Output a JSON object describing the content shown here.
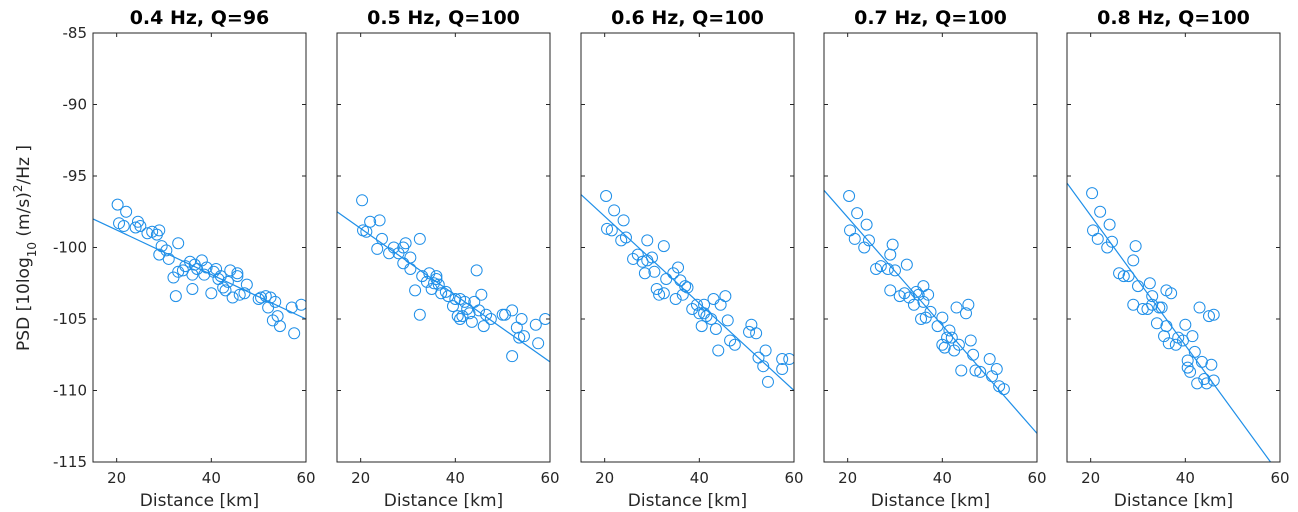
{
  "colors": {
    "series": "#1f8fe8",
    "axes": "#262626"
  },
  "ylabel": {
    "prefix": "PSD [10log",
    "sub": "10",
    "mid": " (m/s)",
    "sup": "2",
    "suffix": "/Hz ]"
  },
  "chart_data": [
    {
      "type": "scatter",
      "title": "0.4 Hz, Q=96",
      "xlabel": "Distance [km]",
      "xlim": [
        15,
        60
      ],
      "ylim": [
        -115,
        -85
      ],
      "xticks": [
        20,
        40,
        60
      ],
      "yticks": [
        -85,
        -90,
        -95,
        -100,
        -105,
        -110,
        -115
      ],
      "grid": false,
      "fit": [
        [
          15,
          -98
        ],
        [
          60,
          -105
        ]
      ],
      "points": [
        [
          20.2,
          -97.0
        ],
        [
          20.5,
          -98.3
        ],
        [
          21.5,
          -98.5
        ],
        [
          22,
          -97.5
        ],
        [
          24,
          -98.6
        ],
        [
          24.5,
          -98.2
        ],
        [
          25,
          -98.5
        ],
        [
          26.5,
          -99.0
        ],
        [
          27.5,
          -98.9
        ],
        [
          28.5,
          -99.1
        ],
        [
          29,
          -98.8
        ],
        [
          29,
          -100.5
        ],
        [
          29.5,
          -99.9
        ],
        [
          30.5,
          -100.2
        ],
        [
          31,
          -100.8
        ],
        [
          32,
          -102.1
        ],
        [
          32.5,
          -103.4
        ],
        [
          33,
          -99.7
        ],
        [
          33,
          -101.7
        ],
        [
          34,
          -101.6
        ],
        [
          34.5,
          -101.3
        ],
        [
          35.5,
          -101.0
        ],
        [
          36,
          -101.9
        ],
        [
          36,
          -102.9
        ],
        [
          36.5,
          -101.2
        ],
        [
          37,
          -101.5
        ],
        [
          38,
          -100.9
        ],
        [
          38.5,
          -101.9
        ],
        [
          39,
          -101.4
        ],
        [
          40,
          -103.2
        ],
        [
          40.5,
          -101.7
        ],
        [
          41,
          -101.5
        ],
        [
          41.5,
          -102.2
        ],
        [
          42,
          -102.0
        ],
        [
          42.5,
          -102.8
        ],
        [
          43,
          -103.0
        ],
        [
          43.5,
          -102.4
        ],
        [
          44,
          -101.6
        ],
        [
          44.5,
          -103.5
        ],
        [
          45.5,
          -102.0
        ],
        [
          45.5,
          -101.8
        ],
        [
          46,
          -103.3
        ],
        [
          47,
          -103.2
        ],
        [
          47.5,
          -102.6
        ],
        [
          50,
          -103.6
        ],
        [
          50.5,
          -103.5
        ],
        [
          51.5,
          -103.4
        ],
        [
          52,
          -104.2
        ],
        [
          52.5,
          -103.5
        ],
        [
          53,
          -105.1
        ],
        [
          53.5,
          -103.8
        ],
        [
          54,
          -104.8
        ],
        [
          54.5,
          -105.5
        ],
        [
          57,
          -104.2
        ],
        [
          57.5,
          -106.0
        ],
        [
          59,
          -104.0
        ]
      ]
    },
    {
      "type": "scatter",
      "title": "0.5 Hz, Q=100",
      "xlabel": "Distance [km]",
      "xlim": [
        15,
        60
      ],
      "ylim": [
        -115,
        -85
      ],
      "xticks": [
        20,
        40,
        60
      ],
      "yticks": [
        -85,
        -90,
        -95,
        -100,
        -105,
        -110,
        -115
      ],
      "grid": false,
      "fit": [
        [
          15,
          -97.5
        ],
        [
          60,
          -108
        ]
      ],
      "points": [
        [
          20.3,
          -96.7
        ],
        [
          20.5,
          -98.8
        ],
        [
          21.2,
          -98.9
        ],
        [
          22,
          -98.2
        ],
        [
          23.5,
          -100.1
        ],
        [
          24,
          -98.1
        ],
        [
          24.5,
          -99.4
        ],
        [
          26,
          -100.4
        ],
        [
          27,
          -100.0
        ],
        [
          28,
          -100.4
        ],
        [
          29,
          -101.1
        ],
        [
          29,
          -100.0
        ],
        [
          29.5,
          -99.7
        ],
        [
          30.5,
          -100.7
        ],
        [
          30.5,
          -101.5
        ],
        [
          31.5,
          -103.0
        ],
        [
          32.5,
          -104.7
        ],
        [
          32.5,
          -99.4
        ],
        [
          33,
          -102.0
        ],
        [
          34,
          -102.4
        ],
        [
          34.5,
          -101.8
        ],
        [
          35,
          -102.9
        ],
        [
          35.5,
          -102.5
        ],
        [
          36,
          -102.0
        ],
        [
          36,
          -102.2
        ],
        [
          36.5,
          -102.6
        ],
        [
          37,
          -103.2
        ],
        [
          38,
          -103.1
        ],
        [
          38.5,
          -103.4
        ],
        [
          39.5,
          -104.1
        ],
        [
          40,
          -103.6
        ],
        [
          40.5,
          -104.8
        ],
        [
          41,
          -105.0
        ],
        [
          41,
          -103.6
        ],
        [
          41.5,
          -104.8
        ],
        [
          42,
          -103.8
        ],
        [
          42.5,
          -104.3
        ],
        [
          43,
          -104.6
        ],
        [
          43.5,
          -105.2
        ],
        [
          44,
          -103.8
        ],
        [
          44.5,
          -101.6
        ],
        [
          45,
          -104.4
        ],
        [
          45.5,
          -103.3
        ],
        [
          46,
          -105.5
        ],
        [
          46.5,
          -104.7
        ],
        [
          47.5,
          -105.0
        ],
        [
          50,
          -104.7
        ],
        [
          50.5,
          -104.7
        ],
        [
          52,
          -107.6
        ],
        [
          52,
          -104.4
        ],
        [
          53,
          -105.6
        ],
        [
          53.5,
          -106.3
        ],
        [
          54,
          -105.0
        ],
        [
          54.5,
          -106.2
        ],
        [
          57,
          -105.4
        ],
        [
          57.5,
          -106.7
        ],
        [
          59,
          -105.0
        ]
      ]
    },
    {
      "type": "scatter",
      "title": "0.6 Hz, Q=100",
      "xlabel": "Distance [km]",
      "xlim": [
        15,
        60
      ],
      "ylim": [
        -115,
        -85
      ],
      "xticks": [
        20,
        40,
        60
      ],
      "yticks": [
        -85,
        -90,
        -95,
        -100,
        -105,
        -110,
        -115
      ],
      "grid": false,
      "fit": [
        [
          15,
          -96.3
        ],
        [
          60,
          -110
        ]
      ],
      "points": [
        [
          20.3,
          -96.4
        ],
        [
          20.5,
          -98.7
        ],
        [
          21.5,
          -98.8
        ],
        [
          22,
          -97.4
        ],
        [
          23.5,
          -99.5
        ],
        [
          24,
          -98.1
        ],
        [
          24.5,
          -99.3
        ],
        [
          26,
          -100.8
        ],
        [
          27,
          -100.5
        ],
        [
          28,
          -101.0
        ],
        [
          28.5,
          -101.8
        ],
        [
          29,
          -100.9
        ],
        [
          29,
          -99.5
        ],
        [
          30,
          -100.7
        ],
        [
          30.5,
          -101.7
        ],
        [
          31,
          -102.9
        ],
        [
          31.5,
          -103.3
        ],
        [
          32.5,
          -99.9
        ],
        [
          32.5,
          -103.2
        ],
        [
          33,
          -102.2
        ],
        [
          34.5,
          -101.8
        ],
        [
          35,
          -103.6
        ],
        [
          35.5,
          -101.4
        ],
        [
          36,
          -102.3
        ],
        [
          36.5,
          -103.3
        ],
        [
          37,
          -102.7
        ],
        [
          37.5,
          -102.8
        ],
        [
          38.5,
          -104.3
        ],
        [
          39.5,
          -104.0
        ],
        [
          40,
          -104.6
        ],
        [
          40.5,
          -105.5
        ],
        [
          41,
          -104.0
        ],
        [
          41,
          -104.6
        ],
        [
          41.5,
          -104.8
        ],
        [
          42.5,
          -105.0
        ],
        [
          43,
          -103.6
        ],
        [
          43.5,
          -105.7
        ],
        [
          44,
          -107.2
        ],
        [
          44.5,
          -104.0
        ],
        [
          45.5,
          -103.4
        ],
        [
          46,
          -105.1
        ],
        [
          46.5,
          -106.5
        ],
        [
          47.5,
          -106.8
        ],
        [
          50.5,
          -105.9
        ],
        [
          51,
          -105.4
        ],
        [
          52,
          -106.0
        ],
        [
          52.5,
          -107.7
        ],
        [
          53.5,
          -108.3
        ],
        [
          54,
          -107.2
        ],
        [
          54.5,
          -109.4
        ],
        [
          57.5,
          -107.8
        ],
        [
          57.5,
          -108.5
        ],
        [
          59,
          -107.8
        ]
      ]
    },
    {
      "type": "scatter",
      "title": "0.7 Hz, Q=100",
      "xlabel": "Distance [km]",
      "xlim": [
        15,
        60
      ],
      "ylim": [
        -115,
        -85
      ],
      "xticks": [
        20,
        40,
        60
      ],
      "yticks": [
        -85,
        -90,
        -95,
        -100,
        -105,
        -110,
        -115
      ],
      "grid": false,
      "fit": [
        [
          15,
          -96
        ],
        [
          60,
          -113
        ]
      ],
      "points": [
        [
          20.3,
          -96.4
        ],
        [
          20.5,
          -98.8
        ],
        [
          21.5,
          -99.4
        ],
        [
          22,
          -97.6
        ],
        [
          23.5,
          -100.0
        ],
        [
          24,
          -98.4
        ],
        [
          24.5,
          -99.5
        ],
        [
          26,
          -101.5
        ],
        [
          27,
          -101.3
        ],
        [
          28.5,
          -101.5
        ],
        [
          29,
          -103.0
        ],
        [
          29,
          -100.5
        ],
        [
          29.5,
          -99.8
        ],
        [
          30,
          -101.6
        ],
        [
          31,
          -103.4
        ],
        [
          32,
          -103.2
        ],
        [
          32.5,
          -101.2
        ],
        [
          33,
          -103.5
        ],
        [
          34,
          -104.0
        ],
        [
          34.5,
          -103.1
        ],
        [
          35,
          -103.3
        ],
        [
          35.5,
          -105.0
        ],
        [
          36,
          -102.7
        ],
        [
          36,
          -103.8
        ],
        [
          36.5,
          -104.9
        ],
        [
          37,
          -103.3
        ],
        [
          37.5,
          -104.5
        ],
        [
          39,
          -105.5
        ],
        [
          40,
          -104.9
        ],
        [
          40,
          -106.8
        ],
        [
          40.5,
          -107.0
        ],
        [
          41,
          -106.3
        ],
        [
          41.5,
          -105.8
        ],
        [
          42,
          -106.3
        ],
        [
          42.5,
          -107.2
        ],
        [
          43,
          -104.2
        ],
        [
          43.5,
          -106.8
        ],
        [
          44,
          -108.6
        ],
        [
          45,
          -104.6
        ],
        [
          45.5,
          -104.0
        ],
        [
          46,
          -106.5
        ],
        [
          46.5,
          -107.5
        ],
        [
          47,
          -108.6
        ],
        [
          48,
          -108.7
        ],
        [
          50,
          -107.8
        ],
        [
          50.5,
          -109.0
        ],
        [
          51.5,
          -108.5
        ],
        [
          52,
          -109.7
        ],
        [
          53,
          -109.9
        ]
      ]
    },
    {
      "type": "scatter",
      "title": "0.8 Hz, Q=100",
      "xlabel": "Distance [km]",
      "xlim": [
        15,
        60
      ],
      "ylim": [
        -115,
        -85
      ],
      "xticks": [
        20,
        40,
        60
      ],
      "yticks": [
        -85,
        -90,
        -95,
        -100,
        -105,
        -110,
        -115
      ],
      "grid": false,
      "fit": [
        [
          15,
          -95.5
        ],
        [
          58,
          -115
        ]
      ],
      "points": [
        [
          20.3,
          -96.2
        ],
        [
          20.5,
          -98.8
        ],
        [
          21.5,
          -99.4
        ],
        [
          22,
          -97.5
        ],
        [
          23.5,
          -100.0
        ],
        [
          24,
          -98.4
        ],
        [
          24.5,
          -99.6
        ],
        [
          26,
          -101.8
        ],
        [
          27,
          -102.0
        ],
        [
          28,
          -102.0
        ],
        [
          29,
          -100.9
        ],
        [
          29,
          -104.0
        ],
        [
          29.5,
          -99.9
        ],
        [
          30,
          -102.7
        ],
        [
          31,
          -104.3
        ],
        [
          32,
          -104.3
        ],
        [
          32.5,
          -102.5
        ],
        [
          33,
          -104.0
        ],
        [
          33,
          -103.4
        ],
        [
          34,
          -105.3
        ],
        [
          34.5,
          -104.2
        ],
        [
          35,
          -104.2
        ],
        [
          35.5,
          -106.2
        ],
        [
          36,
          -105.5
        ],
        [
          36,
          -103.0
        ],
        [
          36.5,
          -106.7
        ],
        [
          37,
          -103.2
        ],
        [
          38,
          -106.8
        ],
        [
          38.5,
          -106.3
        ],
        [
          39.5,
          -106.5
        ],
        [
          40,
          -105.4
        ],
        [
          40.5,
          -107.9
        ],
        [
          40.5,
          -108.4
        ],
        [
          41,
          -108.7
        ],
        [
          41.5,
          -106.2
        ],
        [
          42,
          -107.3
        ],
        [
          42.5,
          -109.5
        ],
        [
          43,
          -104.2
        ],
        [
          43.5,
          -108.0
        ],
        [
          44,
          -109.2
        ],
        [
          44.5,
          -109.5
        ],
        [
          45,
          -104.8
        ],
        [
          45.5,
          -108.2
        ],
        [
          46,
          -109.3
        ],
        [
          46,
          -104.7
        ]
      ]
    }
  ]
}
